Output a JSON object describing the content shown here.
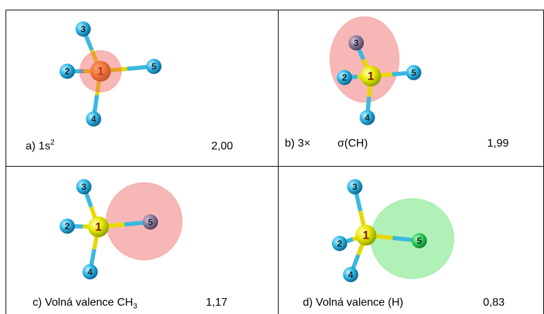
{
  "panels": [
    {
      "label": "a) 1s",
      "label_sup": "2",
      "value": "2,00",
      "atoms": [
        "1",
        "2",
        "3",
        "4",
        "5"
      ]
    },
    {
      "label": "b) 3×",
      "label_extra": "σ(CH)",
      "value": "1,99",
      "atoms": [
        "1",
        "2",
        "3",
        "4",
        "5"
      ]
    },
    {
      "label": "c) Volná valence CH",
      "label_sub": "3",
      "value": "1,17",
      "atoms": [
        "1",
        "2",
        "3",
        "4",
        "5"
      ]
    },
    {
      "label": "d) Volná valence (H)",
      "value": "0,83",
      "atoms": [
        "1",
        "2",
        "3",
        "4",
        "5"
      ]
    }
  ]
}
